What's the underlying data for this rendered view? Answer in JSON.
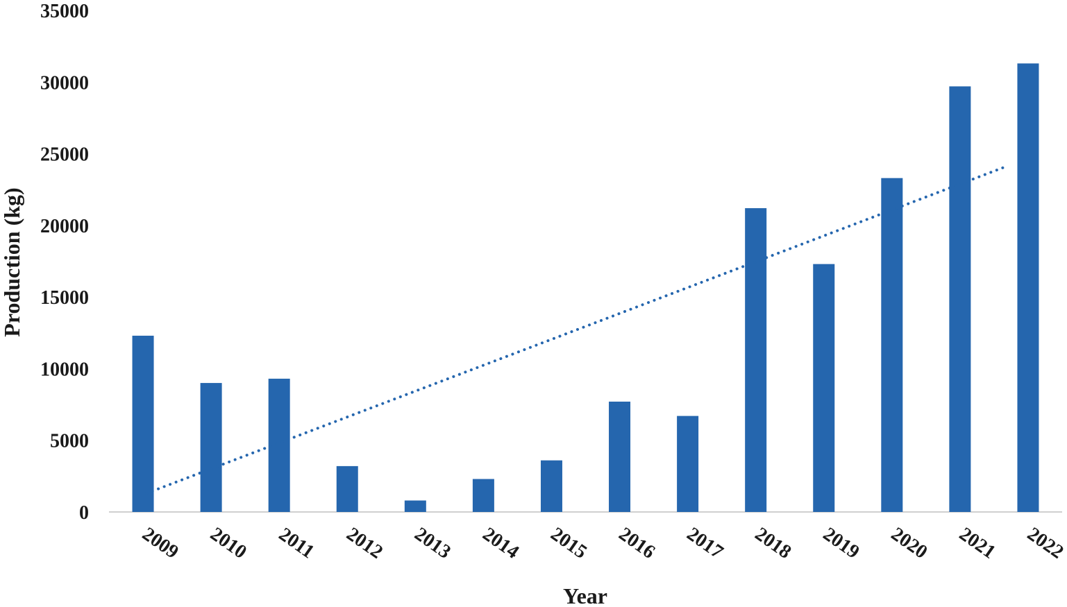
{
  "chart_data": {
    "type": "bar",
    "title": "",
    "xlabel": "Year",
    "ylabel": "Production (kg)",
    "ylim": [
      0,
      35000
    ],
    "yticks": [
      0,
      5000,
      10000,
      15000,
      20000,
      25000,
      30000,
      35000
    ],
    "categories": [
      "2009",
      "2010",
      "2011",
      "2012",
      "2013",
      "2014",
      "2015",
      "2016",
      "2017",
      "2018",
      "2019",
      "2020",
      "2021",
      "2022"
    ],
    "series": [
      {
        "values": [
          12300,
          9000,
          9300,
          3200,
          800,
          2300,
          3600,
          7700,
          6700,
          21200,
          17300,
          23300,
          29700,
          31300
        ],
        "color": "#2566ae"
      }
    ],
    "trendline": {
      "type": "linear",
      "style": "dotted",
      "color": "#2566ae",
      "start": 1300,
      "end": 24100
    },
    "grid": false,
    "legend": "none"
  }
}
